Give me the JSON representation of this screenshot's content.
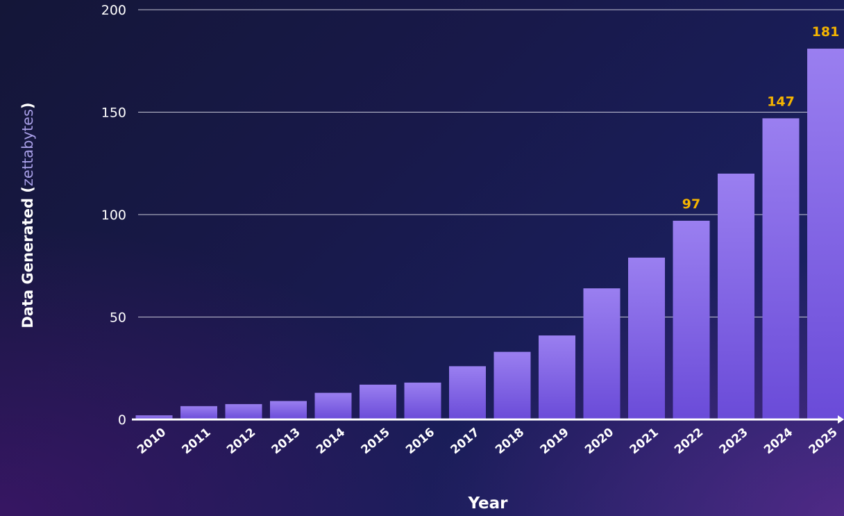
{
  "chart_data": {
    "type": "bar",
    "categories": [
      "2010",
      "2011",
      "2012",
      "2013",
      "2014",
      "2015",
      "2016",
      "2017",
      "2018",
      "2019",
      "2020",
      "2021",
      "2022",
      "2023",
      "2024",
      "2025"
    ],
    "values": [
      2,
      6.5,
      7.5,
      9,
      13,
      17,
      18,
      26,
      33,
      41,
      64,
      79,
      97,
      120,
      147,
      181
    ],
    "data_labels": [
      {
        "index": 12,
        "text": "97"
      },
      {
        "index": 14,
        "text": "147"
      },
      {
        "index": 15,
        "text": "181"
      }
    ],
    "xlabel": "Year",
    "ylabel_bold": "Data Generated (",
    "ylabel_light": "zettabytes",
    "ylabel_close": ")",
    "ylim": [
      0,
      200
    ],
    "yticks": [
      0,
      50,
      100,
      150,
      200
    ],
    "grid": true,
    "colors": {
      "bar_top": "#9a7ff0",
      "bar_bottom": "#6a4bd8",
      "data_label": "#f5b400",
      "gridline": "#e6e6f0"
    }
  }
}
